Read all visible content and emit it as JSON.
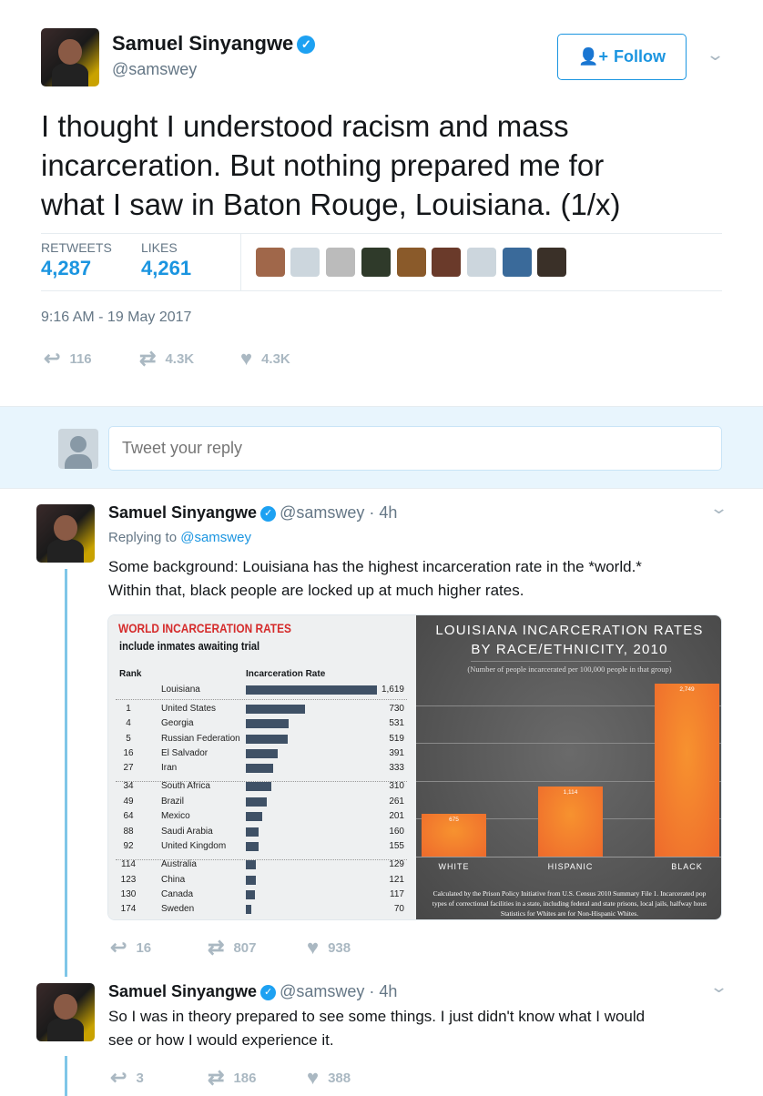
{
  "main_tweet": {
    "name": "Samuel Sinyangwe",
    "handle": "@samswey",
    "follow_label": "Follow",
    "text_lines": [
      "I thought I understood racism and mass",
      "incarceration. But nothing prepared me for",
      "what I saw in Baton Rouge, Louisiana. (1/x)"
    ],
    "retweets_label": "RETWEETS",
    "retweets": "4,287",
    "likes_label": "LIKES",
    "likes": "4,261",
    "timestamp": "9:16 AM - 19 May 2017",
    "actions": {
      "replies": "116",
      "retweets": "4.3K",
      "likes": "4.3K"
    }
  },
  "reply_box": {
    "placeholder": "Tweet your reply"
  },
  "replies": [
    {
      "name": "Samuel Sinyangwe",
      "handle": "@samswey",
      "time": "· 4h",
      "replying_label": "Replying to ",
      "replying_to": "@samswey",
      "text_lines": [
        "Some background: Louisiana has the highest incarceration rate in the *world.*",
        "Within that, black people are locked up at much higher rates."
      ],
      "actions": {
        "replies": "16",
        "retweets": "807",
        "likes": "938"
      }
    },
    {
      "name": "Samuel Sinyangwe",
      "handle": "@samswey",
      "time": "· 4h",
      "text_lines": [
        "So I was in theory prepared to see some things. I just didn't know what I would",
        "see or how I would experience it."
      ],
      "actions": {
        "replies": "3",
        "retweets": "186",
        "likes": "388"
      }
    }
  ],
  "colors": {
    "accent": "#1b95e0",
    "reply_band": "#e8f5fd",
    "thread_line": "#7fc6e8",
    "bar_dark": "#3f5166",
    "bar_orange": "#ee6a2c"
  },
  "chart_data": [
    {
      "type": "bar",
      "title": "WORLD INCARCERATION RATES",
      "subtitle": "include inmates awaiting trial",
      "columns": [
        "Rank",
        "Incarceration Rate"
      ],
      "rows": [
        {
          "rank": "",
          "name": "Louisiana",
          "value": 1619,
          "label": "1,619"
        },
        {
          "rank": "1",
          "name": "United States",
          "value": 730,
          "label": "730"
        },
        {
          "rank": "4",
          "name": "Georgia",
          "value": 531,
          "label": "531"
        },
        {
          "rank": "5",
          "name": "Russian Federation",
          "value": 519,
          "label": "519"
        },
        {
          "rank": "16",
          "name": "El Salvador",
          "value": 391,
          "label": "391"
        },
        {
          "rank": "27",
          "name": "Iran",
          "value": 333,
          "label": "333"
        },
        {
          "rank": "34",
          "name": "South Africa",
          "value": 310,
          "label": "310"
        },
        {
          "rank": "49",
          "name": "Brazil",
          "value": 261,
          "label": "261"
        },
        {
          "rank": "64",
          "name": "Mexico",
          "value": 201,
          "label": "201"
        },
        {
          "rank": "88",
          "name": "Saudi Arabia",
          "value": 160,
          "label": "160"
        },
        {
          "rank": "92",
          "name": "United Kingdom",
          "value": 155,
          "label": "155"
        },
        {
          "rank": "114",
          "name": "Australia",
          "value": 129,
          "label": "129"
        },
        {
          "rank": "123",
          "name": "China",
          "value": 121,
          "label": "121"
        },
        {
          "rank": "130",
          "name": "Canada",
          "value": 117,
          "label": "117"
        },
        {
          "rank": "174",
          "name": "Sweden",
          "value": 70,
          "label": "70"
        }
      ]
    },
    {
      "type": "bar",
      "title_lines": [
        "LOUISIANA INCARCERATION RATES",
        "BY RACE/ETHNICITY, 2010"
      ],
      "subtitle": "(Number of people incarcerated per 100,000 people in that group)",
      "categories": [
        "WHITE",
        "HISPANIC",
        "BLACK"
      ],
      "values": [
        675,
        1114,
        2749
      ],
      "labels": [
        "675",
        "1,114",
        "2,749"
      ],
      "grid": true,
      "footnote_lines": [
        "Calculated by the Prison Policy Initiative from U.S. Census 2010 Summary File 1. Incarcerated pop",
        "types of correctional facilities in a state, including federal and state prisons, local jails, halfway hous",
        "Statistics for Whites are for Non-Hispanic Whites."
      ]
    }
  ]
}
